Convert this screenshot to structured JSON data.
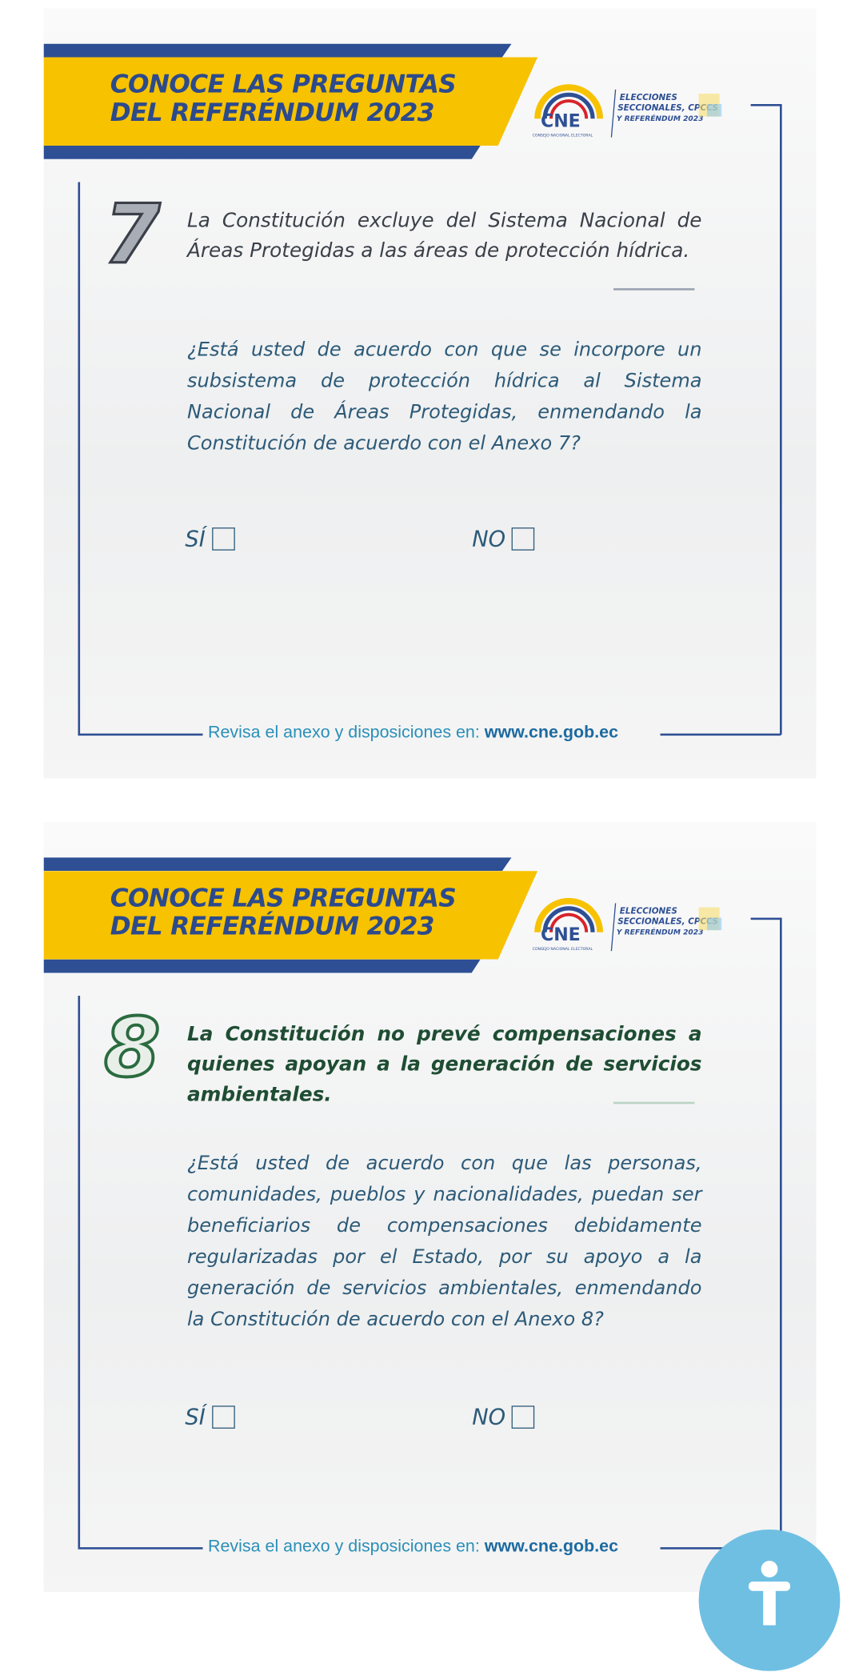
{
  "cards": [
    {
      "header_line1": "CONOCE LAS PREGUNTAS",
      "header_line2": "DEL REFERÉNDUM 2023",
      "logo_text": "CNE",
      "logo_subtitle": "CONSEJO NACIONAL ELECTORAL",
      "event_line1": "ELECCIONES",
      "event_line2": "SECCIONALES, CPCCS",
      "event_line3": "Y REFERÉNDUM 2023",
      "number": "7",
      "statement": "La Constitución excluye del Sistema Nacional de Áreas Protegidas a las áreas de protección hídrica.",
      "question": "¿Está usted de acuerdo con que se incorpore un subsistema de protección hídrica al Sistema Nacional de Áreas Protegidas, enmendando la Constitución de acuerdo con el Anexo 7?",
      "yes_label": "SÍ",
      "no_label": "NO",
      "footer_text": "Revisa el anexo y disposiciones en: ",
      "footer_url": "www.cne.gob.ec"
    },
    {
      "header_line1": "CONOCE LAS PREGUNTAS",
      "header_line2": "DEL REFERÉNDUM 2023",
      "logo_text": "CNE",
      "logo_subtitle": "CONSEJO NACIONAL ELECTORAL",
      "event_line1": "ELECCIONES",
      "event_line2": "SECCIONALES, CPCCS",
      "event_line3": "Y REFERÉNDUM 2023",
      "number": "8",
      "statement": "La Constitución no prevé compensaciones a quienes apoyan a la generación de servicios ambientales.",
      "question": "¿Está usted de acuerdo con que las personas, comunidades, pueblos y nacionalidades, puedan ser beneficiarios de compensaciones debidamente regularizadas por el Estado, por su apoyo a la generación de servicios ambientales, enmendando la Constitución de acuerdo con el Anexo 8?",
      "yes_label": "SÍ",
      "no_label": "NO",
      "footer_text": "Revisa el anexo y disposiciones en: ",
      "footer_url": "www.cne.gob.ec"
    }
  ],
  "accessibility_button": {
    "icon": "accessibility-icon",
    "color": "#6fbfe3"
  },
  "colors": {
    "brand_blue": "#2e4f94",
    "brand_yellow": "#f7c200",
    "card8_green": "#1f4d33"
  }
}
